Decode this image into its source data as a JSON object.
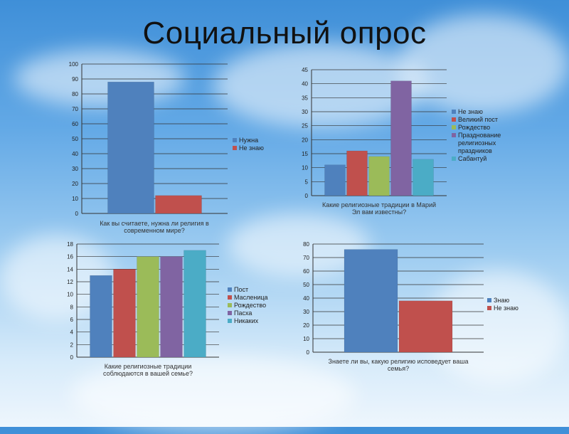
{
  "slide": {
    "title": "Социальный опрос"
  },
  "chart_data": [
    {
      "type": "bar",
      "categories_text": [
        "Как вы считаете, нужна ли религия в",
        "современном мире?"
      ],
      "series": [
        {
          "name": "Нужна",
          "values": [
            88
          ],
          "color": "#4f81bd"
        },
        {
          "name": "Не знаю",
          "values": [
            12
          ],
          "color": "#c0504d"
        }
      ],
      "ylim": [
        0,
        100
      ],
      "ystep": 10,
      "grid": true,
      "legend": "right"
    },
    {
      "type": "bar",
      "categories_text": [
        "Какие религиозные традиции в Марий",
        "Эл вам известны?"
      ],
      "series": [
        {
          "name": "Не знаю",
          "values": [
            11
          ],
          "color": "#4f81bd"
        },
        {
          "name": "Великий пост",
          "values": [
            16
          ],
          "color": "#c0504d"
        },
        {
          "name": "Рождество",
          "values": [
            14
          ],
          "color": "#9bbb59"
        },
        {
          "name": "Празднование религиозных праздников",
          "values": [
            41
          ],
          "color": "#8064a2"
        },
        {
          "name": "Сабантуй",
          "values": [
            13
          ],
          "color": "#4bacc6"
        }
      ],
      "ylim": [
        0,
        45
      ],
      "ystep": 5,
      "grid": true,
      "legend": "right"
    },
    {
      "type": "bar",
      "categories_text": [
        "Какие религиозные традиции",
        "соблюдаются в вашей семье?"
      ],
      "series": [
        {
          "name": "Пост",
          "values": [
            13
          ],
          "color": "#4f81bd"
        },
        {
          "name": "Масленица",
          "values": [
            14
          ],
          "color": "#c0504d"
        },
        {
          "name": "Рождество",
          "values": [
            16
          ],
          "color": "#9bbb59"
        },
        {
          "name": "Пасха",
          "values": [
            16
          ],
          "color": "#8064a2"
        },
        {
          "name": "Никаких",
          "values": [
            17
          ],
          "color": "#4bacc6"
        }
      ],
      "ylim": [
        0,
        18
      ],
      "ystep": 2,
      "grid": true,
      "legend": "right"
    },
    {
      "type": "bar",
      "categories_text": [
        "Знаете ли вы, какую религию исповедует ваша",
        "семья?"
      ],
      "series": [
        {
          "name": "Знаю",
          "values": [
            76
          ],
          "color": "#4f81bd"
        },
        {
          "name": "Не знаю",
          "values": [
            38
          ],
          "color": "#c0504d"
        }
      ],
      "ylim": [
        0,
        80
      ],
      "ystep": 10,
      "grid": true,
      "legend": "right"
    }
  ]
}
